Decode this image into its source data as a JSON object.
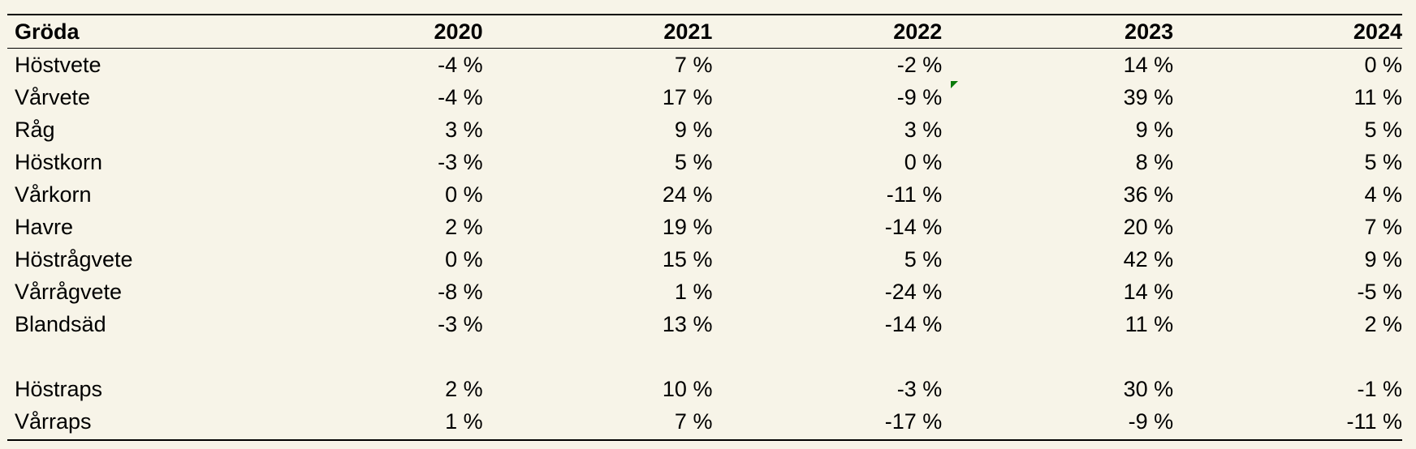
{
  "table": {
    "header": {
      "label": "Gröda",
      "years": [
        "2020",
        "2021",
        "2022",
        "2023",
        "2024"
      ]
    },
    "groups": [
      [
        {
          "label": "Höstvete",
          "values": [
            "-4 %",
            "7 %",
            "-2 %",
            "14 %",
            "0 %"
          ]
        },
        {
          "label": "Vårvete",
          "values": [
            "-4 %",
            "17 %",
            "-9 %",
            "39 %",
            "11 %"
          ]
        },
        {
          "label": "Råg",
          "values": [
            "3 %",
            "9 %",
            "3 %",
            "9 %",
            "5 %"
          ]
        },
        {
          "label": "Höstkorn",
          "values": [
            "-3 %",
            "5 %",
            "0 %",
            "8 %",
            "5 %"
          ]
        },
        {
          "label": "Vårkorn",
          "values": [
            "0 %",
            "24 %",
            "-11 %",
            "36 %",
            "4 %"
          ]
        },
        {
          "label": "Havre",
          "values": [
            "2 %",
            "19 %",
            "-14 %",
            "20 %",
            "7 %"
          ]
        },
        {
          "label": "Höstrågvete",
          "values": [
            "0 %",
            "15 %",
            "5 %",
            "42 %",
            "9 %"
          ]
        },
        {
          "label": "Vårrågvete",
          "values": [
            "-8 %",
            "1 %",
            "-24 %",
            "14 %",
            "-5 %"
          ]
        },
        {
          "label": "Blandsäd",
          "values": [
            "-3 %",
            "13 %",
            "-14 %",
            "11 %",
            "2 %"
          ]
        }
      ],
      [
        {
          "label": "Höstraps",
          "values": [
            "2 %",
            "10 %",
            "-3 %",
            "30 %",
            "-1 %"
          ]
        },
        {
          "label": "Vårraps",
          "values": [
            "1 %",
            "7 %",
            "-17 %",
            "-9 %",
            "-11 %"
          ]
        }
      ]
    ],
    "comment_indicator_color": "#0a7a0a"
  }
}
